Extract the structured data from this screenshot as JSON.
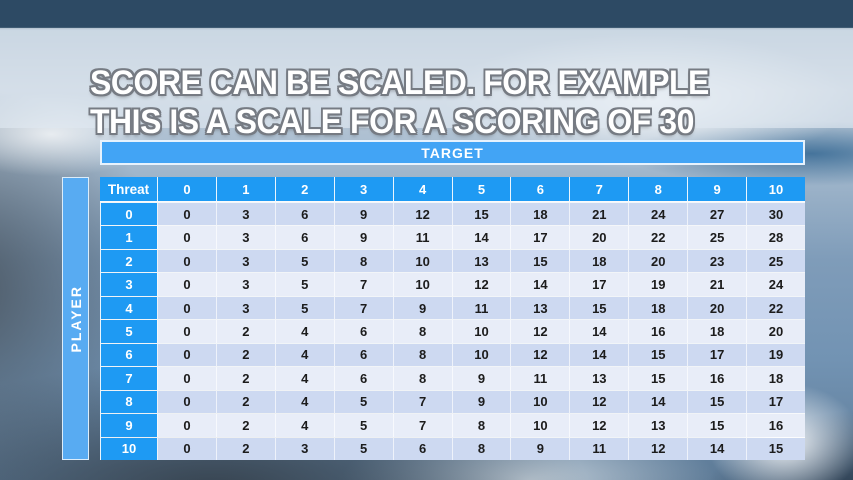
{
  "slide": {
    "title": {
      "line1": "SCORE CAN BE SCALED. FOR EXAMPLE",
      "line2": "THIS IS A SCALE FOR A SCORING OF 30"
    }
  },
  "table": {
    "target_label": "TARGET",
    "player_label": "PLAYER",
    "corner_label": "Threat",
    "column_headers": [
      "0",
      "1",
      "2",
      "3",
      "4",
      "5",
      "6",
      "7",
      "8",
      "9",
      "10"
    ],
    "rows": [
      {
        "label": "0",
        "values": [
          0,
          3,
          6,
          9,
          12,
          15,
          18,
          21,
          24,
          27,
          30
        ]
      },
      {
        "label": "1",
        "values": [
          0,
          3,
          6,
          9,
          11,
          14,
          17,
          20,
          22,
          25,
          28
        ]
      },
      {
        "label": "2",
        "values": [
          0,
          3,
          5,
          8,
          10,
          13,
          15,
          18,
          20,
          23,
          25
        ]
      },
      {
        "label": "3",
        "values": [
          0,
          3,
          5,
          7,
          10,
          12,
          14,
          17,
          19,
          21,
          24
        ]
      },
      {
        "label": "4",
        "values": [
          0,
          3,
          5,
          7,
          9,
          11,
          13,
          15,
          18,
          20,
          22
        ]
      },
      {
        "label": "5",
        "values": [
          0,
          2,
          4,
          6,
          8,
          10,
          12,
          14,
          16,
          18,
          20
        ]
      },
      {
        "label": "6",
        "values": [
          0,
          2,
          4,
          6,
          8,
          10,
          12,
          14,
          15,
          17,
          19
        ]
      },
      {
        "label": "7",
        "values": [
          0,
          2,
          4,
          6,
          8,
          9,
          11,
          13,
          15,
          16,
          18
        ]
      },
      {
        "label": "8",
        "values": [
          0,
          2,
          4,
          5,
          7,
          9,
          10,
          12,
          14,
          15,
          17
        ]
      },
      {
        "label": "9",
        "values": [
          0,
          2,
          4,
          5,
          7,
          8,
          10,
          12,
          13,
          15,
          16
        ]
      },
      {
        "label": "10",
        "values": [
          0,
          2,
          3,
          5,
          6,
          8,
          9,
          11,
          12,
          14,
          15
        ]
      }
    ]
  },
  "colors": {
    "header_blue": "#1e9af3",
    "target_blue": "#42a4f5",
    "player_blue": "#58abf2",
    "row_even": "#cdd9f1",
    "row_odd": "#e8edf8",
    "cell_text": "#1c1c1c"
  },
  "chart_data": {
    "type": "table",
    "title": "Scaled score lookup for a scoring of 30",
    "x_axis_label": "TARGET",
    "y_axis_label": "PLAYER",
    "corner_label": "Threat",
    "columns": [
      "0",
      "1",
      "2",
      "3",
      "4",
      "5",
      "6",
      "7",
      "8",
      "9",
      "10"
    ],
    "rows": [
      {
        "label": "0",
        "values": [
          0,
          3,
          6,
          9,
          12,
          15,
          18,
          21,
          24,
          27,
          30
        ]
      },
      {
        "label": "1",
        "values": [
          0,
          3,
          6,
          9,
          11,
          14,
          17,
          20,
          22,
          25,
          28
        ]
      },
      {
        "label": "2",
        "values": [
          0,
          3,
          5,
          8,
          10,
          13,
          15,
          18,
          20,
          23,
          25
        ]
      },
      {
        "label": "3",
        "values": [
          0,
          3,
          5,
          7,
          10,
          12,
          14,
          17,
          19,
          21,
          24
        ]
      },
      {
        "label": "4",
        "values": [
          0,
          3,
          5,
          7,
          9,
          11,
          13,
          15,
          18,
          20,
          22
        ]
      },
      {
        "label": "5",
        "values": [
          0,
          2,
          4,
          6,
          8,
          10,
          12,
          14,
          16,
          18,
          20
        ]
      },
      {
        "label": "6",
        "values": [
          0,
          2,
          4,
          6,
          8,
          10,
          12,
          14,
          15,
          17,
          19
        ]
      },
      {
        "label": "7",
        "values": [
          0,
          2,
          4,
          6,
          8,
          9,
          11,
          13,
          15,
          16,
          18
        ]
      },
      {
        "label": "8",
        "values": [
          0,
          2,
          4,
          5,
          7,
          9,
          10,
          12,
          14,
          15,
          17
        ]
      },
      {
        "label": "9",
        "values": [
          0,
          2,
          4,
          5,
          7,
          8,
          10,
          12,
          13,
          15,
          16
        ]
      },
      {
        "label": "10",
        "values": [
          0,
          2,
          3,
          5,
          6,
          8,
          9,
          11,
          12,
          14,
          15
        ]
      }
    ]
  }
}
